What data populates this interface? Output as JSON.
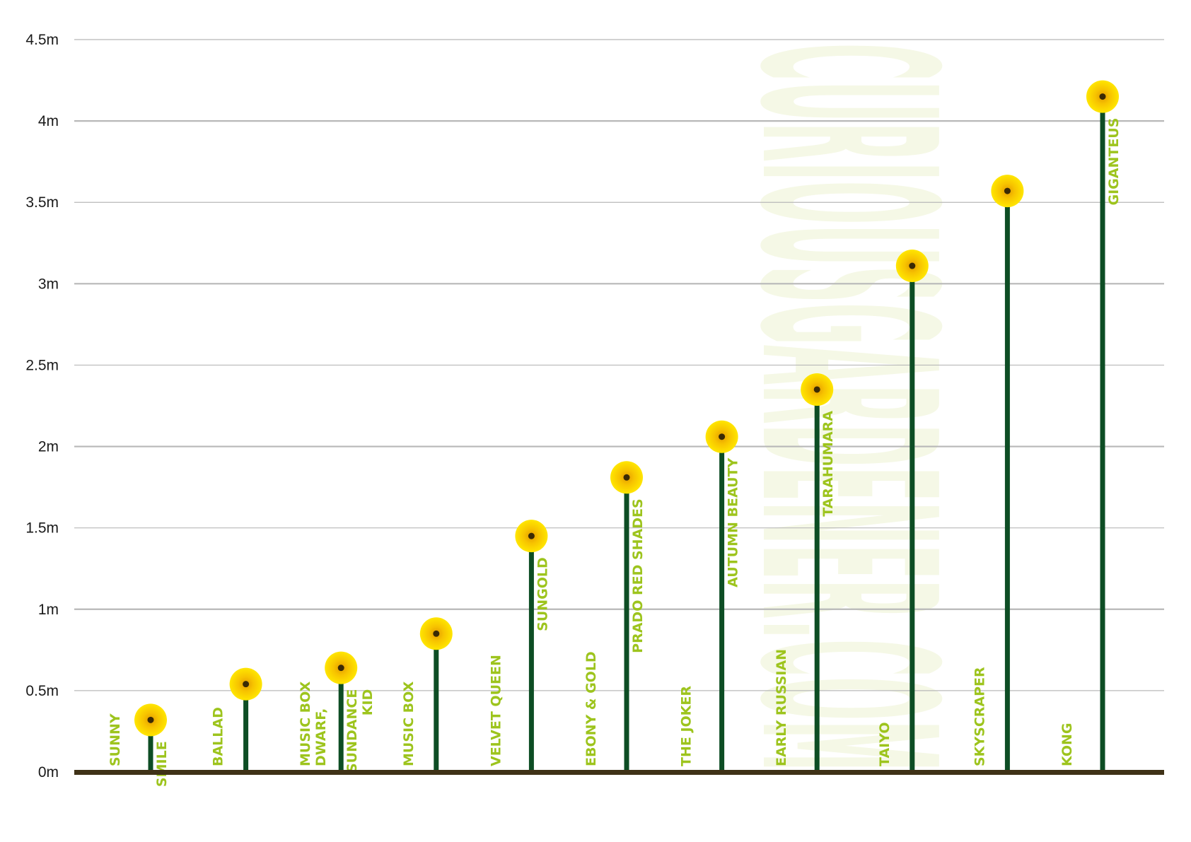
{
  "watermark": "CURIOUSGARDENER.COM",
  "chart_data": {
    "type": "bar",
    "title": "",
    "xlabel": "",
    "ylabel": "",
    "ylim": [
      0,
      4.5
    ],
    "yticks": [
      "0m",
      "0.5m",
      "1m",
      "1.5m",
      "2m",
      "2.5m",
      "3m",
      "3.5m",
      "4m",
      "4.5m"
    ],
    "grid": true,
    "categories": [
      [
        "SUNNY",
        "SMILE"
      ],
      [
        "BALLAD"
      ],
      [
        "MUSIC BOX",
        "DWARF,",
        "SUNDANCE",
        "KID"
      ],
      [
        "MUSIC BOX"
      ],
      [
        "VELVET QUEEN",
        "SUNGOLD"
      ],
      [
        "EBONY & GOLD",
        "PRADO RED SHADES"
      ],
      [
        "THE JOKER",
        "AUTUMN BEAUTY"
      ],
      [
        "EARLY RUSSIAN",
        "TARAHUMARA"
      ],
      [
        "TAIYO"
      ],
      [
        "SKYSCRAPER"
      ],
      [
        "KONG",
        "GIGANTEUS"
      ]
    ],
    "values": [
      0.32,
      0.54,
      0.64,
      0.85,
      1.45,
      1.81,
      2.06,
      2.35,
      3.11,
      3.57,
      4.15
    ],
    "colors": {
      "stem": "#0d4d24",
      "ground": "#3f3217",
      "grid": "#b8b8b8",
      "petal": "#f7c300",
      "center": "#3a2a05",
      "label": "#9dc41d"
    }
  }
}
